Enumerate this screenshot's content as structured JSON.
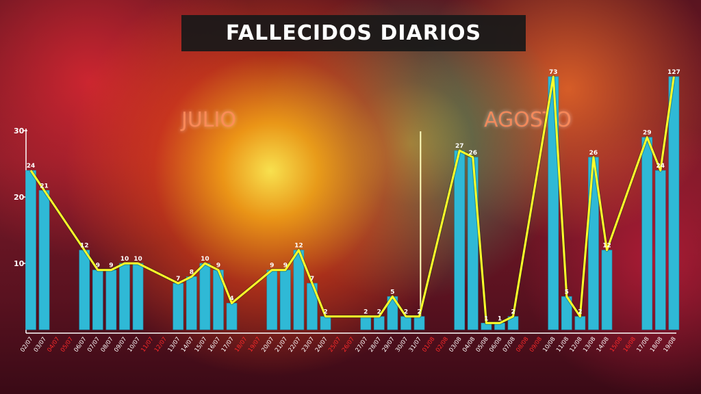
{
  "chart_data": {
    "type": "bar",
    "title": "FALLECIDOS DIARIOS",
    "annotations": [
      "JULIO",
      "AGOSTO"
    ],
    "overlay_line": true,
    "ylim": [
      0,
      30
    ],
    "yticks": [
      10,
      20,
      30
    ],
    "grid": false,
    "legend": "none",
    "colors": {
      "bar": "#2fb9d6",
      "line": "#ffff2a",
      "weekend_label": "#ff2a2a",
      "weekday_label": "#ffffff"
    },
    "categories": [
      "02/07",
      "03/07",
      "04/07",
      "05/07",
      "06/07",
      "07/07",
      "08/07",
      "09/07",
      "10/07",
      "11/07",
      "12/07",
      "13/07",
      "14/07",
      "15/07",
      "16/07",
      "17/07",
      "18/07",
      "19/07",
      "20/07",
      "21/07",
      "22/07",
      "23/07",
      "24/07",
      "25/07",
      "26/07",
      "27/07",
      "28/07",
      "29/07",
      "30/07",
      "31/07",
      "01/08",
      "02/08",
      "03/08",
      "04/08",
      "05/08",
      "06/08",
      "07/08",
      "08/08",
      "09/08",
      "10/08",
      "11/08",
      "12/08",
      "13/08",
      "14/08",
      "15/08",
      "16/08",
      "17/08",
      "18/08",
      "19/08"
    ],
    "weekend": [
      false,
      false,
      true,
      true,
      false,
      false,
      false,
      false,
      false,
      true,
      true,
      false,
      false,
      false,
      false,
      false,
      true,
      true,
      false,
      false,
      false,
      false,
      false,
      true,
      true,
      false,
      false,
      false,
      false,
      false,
      true,
      true,
      false,
      false,
      false,
      false,
      false,
      true,
      true,
      false,
      false,
      false,
      false,
      false,
      true,
      true,
      false,
      false,
      false
    ],
    "values": [
      24,
      21,
      null,
      null,
      12,
      9,
      9,
      10,
      10,
      null,
      null,
      7,
      8,
      10,
      9,
      4,
      null,
      null,
      9,
      9,
      12,
      7,
      2,
      null,
      null,
      2,
      2,
      5,
      2,
      2,
      null,
      null,
      27,
      26,
      1,
      1,
      2,
      null,
      null,
      73,
      5,
      2,
      26,
      12,
      null,
      null,
      29,
      24,
      127
    ],
    "data_labels": [
      "24",
      "21",
      "",
      "",
      "12",
      "9",
      "9",
      "10",
      "10",
      "",
      "",
      "7",
      "8",
      "10",
      "9",
      "4",
      "",
      "",
      "9",
      "9",
      "12",
      "7",
      "2",
      "",
      "",
      "2",
      "2",
      "5",
      "2",
      "2",
      "",
      "",
      "27",
      "26",
      "1",
      "1",
      "2",
      "",
      "",
      "73",
      "5",
      "2",
      "26",
      "12",
      "",
      "",
      "29",
      "24",
      "127"
    ]
  }
}
